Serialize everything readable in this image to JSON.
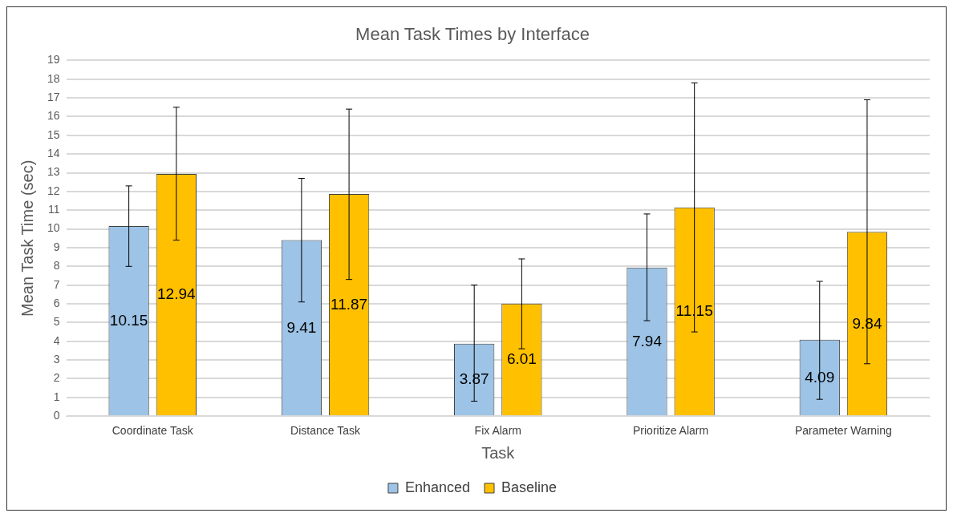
{
  "chart_data": {
    "type": "bar",
    "title": "Mean Task Times by Interface",
    "xlabel": "Task",
    "ylabel": "Mean Task Time (sec)",
    "categories": [
      "Coordinate Task",
      "Distance Task",
      "Fix Alarm",
      "Prioritize Alarm",
      "Parameter Warning"
    ],
    "series": [
      {
        "name": "Enhanced",
        "color": "#9dc3e6",
        "values": [
          10.15,
          9.41,
          3.87,
          7.94,
          4.09
        ],
        "errors": [
          [
            8.0,
            12.3
          ],
          [
            6.1,
            12.7
          ],
          [
            0.8,
            7.0
          ],
          [
            5.1,
            10.8
          ],
          [
            0.9,
            7.2
          ]
        ]
      },
      {
        "name": "Baseline",
        "color": "#ffc000",
        "values": [
          12.94,
          11.87,
          6.01,
          11.15,
          9.84
        ],
        "errors": [
          [
            9.4,
            16.5
          ],
          [
            7.3,
            16.4
          ],
          [
            3.6,
            8.4
          ],
          [
            4.5,
            17.8
          ],
          [
            2.8,
            16.9
          ]
        ]
      }
    ],
    "ylim": [
      0,
      19
    ],
    "yticks": [
      0,
      1,
      2,
      3,
      4,
      5,
      6,
      7,
      8,
      9,
      10,
      11,
      12,
      13,
      14,
      15,
      16,
      17,
      18,
      19
    ],
    "grid": "y",
    "legend": "bottom",
    "data_labels": true
  }
}
